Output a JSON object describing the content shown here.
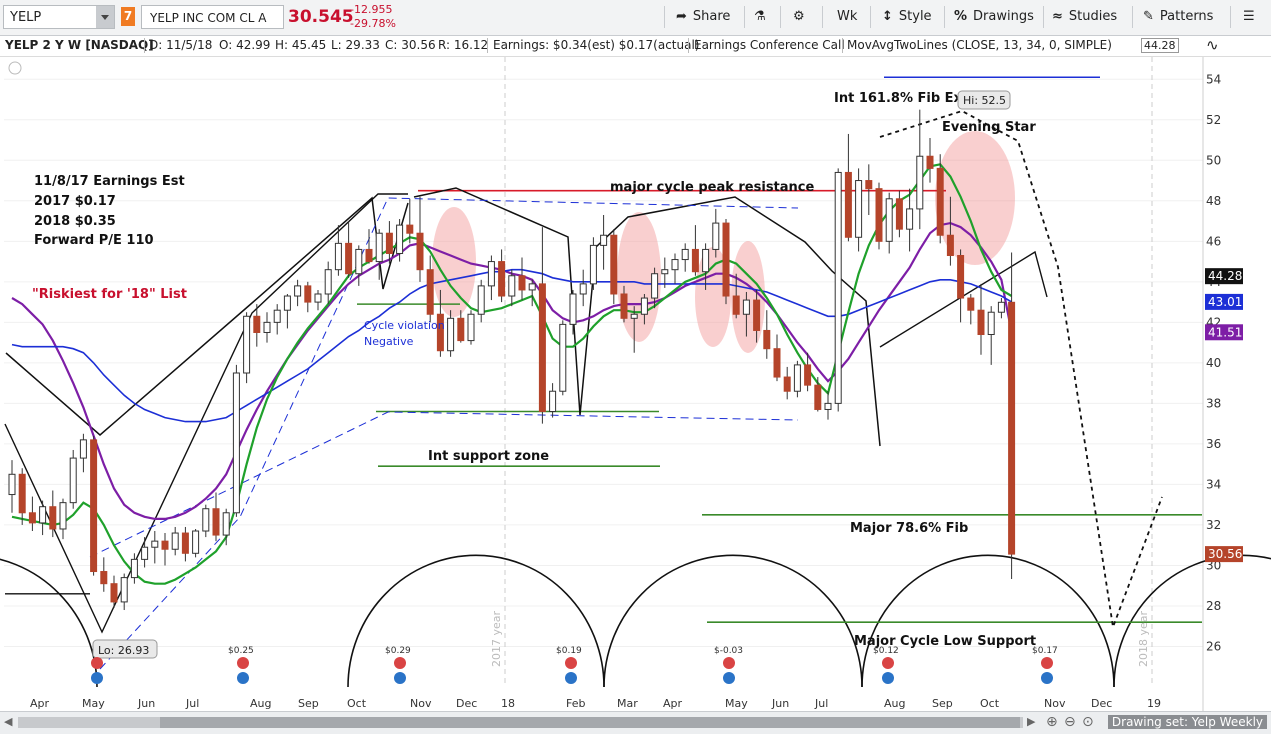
{
  "toolbar": {
    "symbol": "YELP",
    "badge": "7",
    "company": "YELP INC COM CL A",
    "last": "30.545",
    "change": "-12.955",
    "change_pct": "-29.78%",
    "share": "Share",
    "wk": "Wk",
    "style": "Style",
    "drawings": "Drawings",
    "studies": "Studies",
    "patterns": "Patterns"
  },
  "infobar": {
    "title": "YELP 2 Y W [NASDAQ]",
    "date": "D: 11/5/18",
    "open": "O: 42.99",
    "high": "H: 45.45",
    "low": "L: 29.33",
    "close": "C: 30.56",
    "range": "R: 16.12",
    "earnings": "Earnings: $0.34(est) $0.17(actual)",
    "call": "Earnings Conference Call",
    "study": "MovAvgTwoLines (CLOSE, 13, 34, 0, SIMPLE)",
    "study_value": "44.28"
  },
  "scrollbar": {
    "drawing_set": "Drawing set: Yelp Weekly"
  },
  "colors": {
    "up": "#ffffff",
    "down": "#b5442a",
    "ma13": "#7d1ea6",
    "ma34": "#1c2fd6",
    "fast": "#1fa12b",
    "fibline": "#d81b2a",
    "support": "#3a8a2a"
  },
  "chart_data": {
    "type": "candlestick",
    "interval": "weekly",
    "ylim": [
      24,
      55
    ],
    "y_ticks": [
      26,
      28,
      30,
      32,
      34,
      36,
      38,
      40,
      42,
      44,
      46,
      48,
      50,
      52,
      54
    ],
    "x_labels": [
      "Apr",
      "May",
      "Jun",
      "Jul",
      "Aug",
      "Sep",
      "Oct",
      "Nov",
      "Dec",
      "18",
      "Feb",
      "Mar",
      "Apr",
      "May",
      "Jun",
      "Jul",
      "Aug",
      "Sep",
      "Oct",
      "Nov",
      "Dec",
      "19"
    ],
    "year_labels": [
      "2017 year",
      "2018 year"
    ],
    "price_labels": [
      {
        "value": "44.28",
        "color": "#111111"
      },
      {
        "value": "43.01",
        "color": "#1c2fd6"
      },
      {
        "value": "41.51",
        "color": "#7d1ea6"
      },
      {
        "value": "30.56",
        "color": "#b5442a"
      }
    ],
    "annotations": [
      {
        "text": "11/8/17 Earnings Est"
      },
      {
        "text": "2017  $0.17"
      },
      {
        "text": "2018  $0.35"
      },
      {
        "text": "Forward P/E 110"
      },
      {
        "text": "\"Riskiest for '18\" List"
      },
      {
        "text": "Cycle violation"
      },
      {
        "text": "Negative"
      },
      {
        "text": "major cycle peak resistance"
      },
      {
        "text": "Int support zone"
      },
      {
        "text": "Int 161.8% Fib Ext"
      },
      {
        "text": "Evening Star"
      },
      {
        "text": "Major 78.6% Fib"
      },
      {
        "text": "Major Cycle Low Support"
      }
    ],
    "hi_label": "Hi: 52.5",
    "lo_label": "Lo: 26.93",
    "earnings_events": [
      "$0.25",
      "$0.29",
      "$0.19",
      "$-0.03",
      "$0.12",
      "$0.17"
    ],
    "hlines": {
      "fib_161": 54.1,
      "peak_resistance": 48.5,
      "int_support": 34.9,
      "fib_786": 32.5,
      "cycle_low_support": 27.2
    },
    "candles": [
      [
        33.5,
        35.2,
        32.6,
        34.5
      ],
      [
        34.5,
        34.8,
        32.0,
        32.6
      ],
      [
        32.6,
        33.4,
        31.7,
        32.1
      ],
      [
        32.1,
        33.2,
        31.5,
        32.9
      ],
      [
        32.9,
        33.7,
        31.4,
        31.8
      ],
      [
        31.8,
        33.3,
        31.3,
        33.1
      ],
      [
        33.1,
        35.7,
        32.8,
        35.3
      ],
      [
        35.3,
        36.5,
        34.6,
        36.2
      ],
      [
        36.2,
        36.4,
        29.5,
        29.7
      ],
      [
        29.7,
        30.4,
        28.7,
        29.1
      ],
      [
        29.1,
        29.5,
        27.9,
        28.2
      ],
      [
        28.2,
        29.6,
        27.8,
        29.4
      ],
      [
        29.4,
        30.6,
        29.1,
        30.3
      ],
      [
        30.3,
        31.4,
        29.9,
        30.9
      ],
      [
        30.9,
        31.7,
        30.1,
        31.2
      ],
      [
        31.2,
        31.6,
        30.0,
        30.8
      ],
      [
        30.8,
        31.9,
        30.5,
        31.6
      ],
      [
        31.6,
        31.9,
        30.2,
        30.6
      ],
      [
        30.6,
        31.8,
        30.4,
        31.7
      ],
      [
        31.7,
        33.0,
        31.4,
        32.8
      ],
      [
        32.8,
        33.6,
        31.2,
        31.5
      ],
      [
        31.5,
        32.8,
        31.0,
        32.6
      ],
      [
        32.6,
        39.9,
        32.4,
        39.5
      ],
      [
        39.5,
        42.5,
        39.0,
        42.3
      ],
      [
        42.3,
        42.9,
        40.8,
        41.5
      ],
      [
        41.5,
        42.5,
        41.0,
        42.0
      ],
      [
        42.0,
        42.9,
        41.4,
        42.6
      ],
      [
        42.6,
        43.4,
        41.7,
        43.3
      ],
      [
        43.3,
        44.1,
        42.8,
        43.8
      ],
      [
        43.8,
        44.0,
        42.5,
        43.0
      ],
      [
        43.0,
        43.6,
        42.6,
        43.4
      ],
      [
        43.4,
        45.0,
        42.9,
        44.6
      ],
      [
        44.6,
        46.8,
        44.3,
        45.9
      ],
      [
        45.9,
        47.0,
        44.2,
        44.4
      ],
      [
        44.4,
        45.8,
        43.8,
        45.6
      ],
      [
        45.6,
        46.6,
        44.9,
        45.0
      ],
      [
        45.0,
        46.6,
        44.1,
        46.4
      ],
      [
        46.4,
        47.0,
        44.9,
        45.4
      ],
      [
        45.4,
        47.1,
        45.0,
        46.8
      ],
      [
        46.8,
        48.1,
        45.9,
        46.4
      ],
      [
        46.4,
        48.2,
        44.0,
        44.6
      ],
      [
        44.6,
        45.3,
        42.0,
        42.4
      ],
      [
        42.4,
        43.6,
        40.3,
        40.6
      ],
      [
        40.6,
        42.6,
        40.3,
        42.2
      ],
      [
        42.2,
        42.6,
        41.0,
        41.1
      ],
      [
        41.1,
        42.6,
        40.9,
        42.4
      ],
      [
        42.4,
        44.1,
        42.0,
        43.8
      ],
      [
        43.8,
        45.3,
        43.1,
        45.0
      ],
      [
        45.0,
        45.6,
        43.0,
        43.3
      ],
      [
        43.3,
        44.6,
        42.8,
        44.3
      ],
      [
        44.3,
        45.2,
        43.1,
        43.6
      ],
      [
        43.6,
        44.1,
        42.8,
        43.9
      ],
      [
        43.9,
        46.7,
        37.0,
        37.6
      ],
      [
        37.6,
        39.0,
        37.3,
        38.6
      ],
      [
        38.6,
        42.1,
        38.4,
        41.9
      ],
      [
        41.9,
        43.6,
        41.4,
        43.4
      ],
      [
        43.4,
        44.6,
        42.8,
        43.9
      ],
      [
        43.9,
        46.2,
        43.6,
        45.8
      ],
      [
        45.8,
        47.3,
        44.6,
        46.3
      ],
      [
        46.3,
        46.6,
        42.9,
        43.4
      ],
      [
        43.4,
        43.8,
        42.0,
        42.2
      ],
      [
        42.2,
        42.8,
        40.5,
        42.4
      ],
      [
        42.4,
        43.4,
        41.9,
        43.2
      ],
      [
        43.2,
        44.7,
        42.7,
        44.4
      ],
      [
        44.4,
        45.2,
        43.7,
        44.6
      ],
      [
        44.6,
        45.4,
        43.9,
        45.1
      ],
      [
        45.1,
        45.9,
        44.5,
        45.6
      ],
      [
        45.6,
        46.8,
        44.3,
        44.5
      ],
      [
        44.5,
        45.9,
        43.6,
        45.6
      ],
      [
        45.6,
        47.6,
        45.2,
        46.9
      ],
      [
        46.9,
        47.1,
        42.9,
        43.3
      ],
      [
        43.3,
        44.4,
        42.2,
        42.4
      ],
      [
        42.4,
        43.5,
        41.3,
        43.1
      ],
      [
        43.1,
        43.6,
        41.0,
        41.6
      ],
      [
        41.6,
        42.6,
        40.2,
        40.7
      ],
      [
        40.7,
        41.4,
        39.1,
        39.3
      ],
      [
        39.3,
        39.8,
        38.2,
        38.6
      ],
      [
        38.6,
        40.1,
        38.3,
        39.9
      ],
      [
        39.9,
        40.5,
        38.6,
        38.9
      ],
      [
        38.9,
        39.3,
        37.6,
        37.7
      ],
      [
        37.7,
        38.6,
        37.2,
        38.0
      ],
      [
        38.0,
        49.6,
        37.6,
        49.4
      ],
      [
        49.4,
        51.3,
        46.0,
        46.2
      ],
      [
        46.2,
        49.6,
        45.5,
        49.0
      ],
      [
        49.0,
        49.8,
        47.3,
        48.6
      ],
      [
        48.6,
        48.9,
        45.6,
        46.0
      ],
      [
        46.0,
        48.4,
        45.4,
        48.1
      ],
      [
        48.1,
        48.5,
        46.2,
        46.6
      ],
      [
        46.6,
        48.6,
        45.5,
        47.6
      ],
      [
        47.6,
        52.5,
        46.6,
        50.2
      ],
      [
        50.2,
        51.1,
        48.9,
        49.6
      ],
      [
        49.6,
        50.3,
        45.9,
        46.3
      ],
      [
        46.3,
        48.2,
        44.8,
        45.3
      ],
      [
        45.3,
        45.6,
        42.0,
        43.2
      ],
      [
        43.2,
        43.4,
        41.9,
        42.6
      ],
      [
        42.6,
        43.9,
        40.4,
        41.4
      ],
      [
        41.4,
        42.8,
        39.9,
        42.5
      ],
      [
        42.5,
        43.2,
        42.2,
        42.99
      ],
      [
        42.99,
        45.45,
        29.33,
        30.56
      ]
    ],
    "series": [
      {
        "name": "MovAvgTwoLines 13",
        "values": [
          43.2,
          42.9,
          42.4,
          41.9,
          41.1,
          40.1,
          39.0,
          37.8,
          36.4,
          35.0,
          33.8,
          33.0,
          32.6,
          32.4,
          32.3,
          32.3,
          32.4,
          32.6,
          32.9,
          33.3,
          33.8,
          34.5,
          35.6,
          36.7,
          37.7,
          38.6,
          39.4,
          40.2,
          40.9,
          41.6,
          42.2,
          42.8,
          43.4,
          43.9,
          44.3,
          44.6,
          44.9,
          45.1,
          45.4,
          45.8,
          45.9,
          45.7,
          45.5,
          45.3,
          45.1,
          44.9,
          44.8,
          44.7,
          44.6,
          44.4,
          44.3,
          44.1,
          43.4,
          42.6,
          42.2,
          42.0,
          42.1,
          42.3,
          42.6,
          42.8,
          42.9,
          42.9,
          42.9,
          43.0,
          43.2,
          43.5,
          43.8,
          44.0,
          44.2,
          44.4,
          44.4,
          44.2,
          43.9,
          43.5,
          43.0,
          42.4,
          41.7,
          41.0,
          40.4,
          39.7,
          39.1,
          39.6,
          40.2,
          41.0,
          41.8,
          42.6,
          43.3,
          44.0,
          44.7,
          45.6,
          46.4,
          46.8,
          46.9,
          46.7,
          46.3,
          45.7,
          45.0,
          44.1,
          41.51
        ]
      },
      {
        "name": "MovAvgTwoLines 34",
        "values": [
          40.9,
          40.8,
          40.8,
          40.8,
          40.8,
          40.8,
          40.7,
          40.5,
          40.0,
          39.4,
          38.9,
          38.4,
          38.0,
          37.7,
          37.5,
          37.3,
          37.2,
          37.1,
          37.1,
          37.1,
          37.2,
          37.3,
          37.6,
          37.9,
          38.2,
          38.5,
          38.8,
          39.1,
          39.4,
          39.7,
          40.1,
          40.5,
          40.9,
          41.3,
          41.6,
          42.0,
          42.3,
          42.7,
          43.0,
          43.4,
          43.7,
          43.9,
          44.0,
          44.1,
          44.2,
          44.3,
          44.4,
          44.5,
          44.5,
          44.6,
          44.6,
          44.5,
          44.4,
          44.2,
          44.1,
          44.0,
          44.0,
          44.0,
          44.0,
          44.0,
          44.0,
          44.0,
          43.9,
          43.9,
          43.9,
          43.9,
          43.9,
          43.9,
          43.9,
          43.9,
          43.9,
          43.8,
          43.7,
          43.6,
          43.5,
          43.3,
          43.1,
          42.9,
          42.7,
          42.5,
          42.3,
          42.3,
          42.4,
          42.6,
          42.8,
          43.0,
          43.2,
          43.4,
          43.6,
          43.8,
          44.0,
          44.1,
          44.1,
          44.0,
          43.9,
          43.7,
          43.5,
          43.3,
          43.01
        ]
      },
      {
        "name": "Fast MA",
        "values": [
          32.4,
          32.3,
          32.2,
          32.1,
          32.0,
          32.1,
          32.5,
          33.1,
          32.8,
          32.0,
          31.0,
          30.2,
          29.6,
          29.2,
          29.1,
          29.1,
          29.3,
          29.6,
          29.9,
          30.3,
          30.7,
          31.4,
          33.0,
          35.0,
          36.8,
          38.2,
          39.3,
          40.2,
          41.0,
          41.7,
          42.3,
          42.9,
          43.6,
          44.3,
          44.7,
          45.0,
          45.3,
          45.6,
          45.9,
          46.2,
          46.1,
          45.5,
          44.6,
          43.8,
          43.2,
          42.7,
          42.5,
          42.6,
          42.7,
          42.9,
          43.1,
          43.3,
          42.3,
          41.2,
          40.8,
          40.8,
          41.2,
          41.8,
          42.3,
          42.6,
          42.6,
          42.5,
          42.5,
          42.8,
          43.2,
          43.6,
          44.0,
          44.2,
          44.4,
          44.9,
          45.1,
          44.9,
          44.4,
          43.9,
          43.2,
          42.4,
          41.4,
          40.5,
          39.7,
          39.0,
          38.5,
          40.5,
          42.5,
          44.4,
          45.8,
          46.8,
          47.5,
          48.0,
          48.3,
          49.0,
          49.7,
          49.8,
          49.2,
          48.2,
          47.0,
          45.6,
          44.5,
          43.6,
          43.3
        ]
      }
    ]
  }
}
